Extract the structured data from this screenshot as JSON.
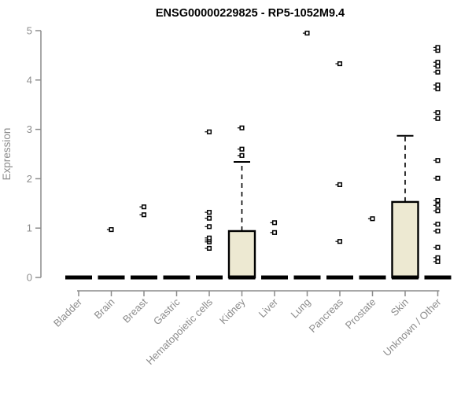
{
  "chart_data": {
    "type": "boxplot",
    "title": "ENSG00000229825 - RP5-1052M9.4",
    "ylabel": "Expression",
    "ylim": [
      0,
      5
    ],
    "yticks": [
      0,
      1,
      2,
      3,
      4,
      5
    ],
    "grid": false,
    "categories": [
      "Bladder",
      "Brain",
      "Breast",
      "Gastric",
      "Hematopoietic cells",
      "Kidney",
      "Liver",
      "Lung",
      "Pancreas",
      "Prostate",
      "Skin",
      "Unknown / Other"
    ],
    "series": [
      {
        "category": "Bladder",
        "median": 0,
        "q1": 0,
        "q3": 0,
        "whisker_low": 0,
        "whisker_high": 0,
        "outliers": []
      },
      {
        "category": "Brain",
        "median": 0,
        "q1": 0,
        "q3": 0,
        "whisker_low": 0,
        "whisker_high": 0,
        "outliers": [
          0.97
        ]
      },
      {
        "category": "Breast",
        "median": 0,
        "q1": 0,
        "q3": 0,
        "whisker_low": 0,
        "whisker_high": 0,
        "outliers": [
          1.27,
          1.43
        ]
      },
      {
        "category": "Gastric",
        "median": 0,
        "q1": 0,
        "q3": 0,
        "whisker_low": 0,
        "whisker_high": 0,
        "outliers": []
      },
      {
        "category": "Hematopoietic cells",
        "median": 0,
        "q1": 0,
        "q3": 0,
        "whisker_low": 0,
        "whisker_high": 0,
        "outliers": [
          0.59,
          0.72,
          0.76,
          0.8,
          1.03,
          1.2,
          1.32,
          2.95
        ]
      },
      {
        "category": "Kidney",
        "median": 0,
        "q1": 0,
        "q3": 0.94,
        "whisker_low": 0,
        "whisker_high": 2.34,
        "outliers": [
          2.47,
          2.6,
          3.03
        ]
      },
      {
        "category": "Liver",
        "median": 0,
        "q1": 0,
        "q3": 0,
        "whisker_low": 0,
        "whisker_high": 0,
        "outliers": [
          0.91,
          1.11
        ]
      },
      {
        "category": "Lung",
        "median": 0,
        "q1": 0,
        "q3": 0,
        "whisker_low": 0,
        "whisker_high": 0,
        "outliers": [
          4.95
        ]
      },
      {
        "category": "Pancreas",
        "median": 0,
        "q1": 0,
        "q3": 0,
        "whisker_low": 0,
        "whisker_high": 0,
        "outliers": [
          0.73,
          1.88,
          4.33
        ]
      },
      {
        "category": "Prostate",
        "median": 0,
        "q1": 0,
        "q3": 0,
        "whisker_low": 0,
        "whisker_high": 0,
        "outliers": [
          1.19
        ]
      },
      {
        "category": "Skin",
        "median": 0,
        "q1": 0,
        "q3": 1.53,
        "whisker_low": 0,
        "whisker_high": 2.87,
        "outliers": []
      },
      {
        "category": "Unknown / Other",
        "median": 0,
        "q1": 0,
        "q3": 0,
        "whisker_low": 0,
        "whisker_high": 0,
        "outliers": [
          0.32,
          0.4,
          0.61,
          0.94,
          1.08,
          1.35,
          1.46,
          1.56,
          2.01,
          2.37,
          3.22,
          3.34,
          3.82,
          3.9,
          4.16,
          4.28,
          4.36,
          4.6,
          4.66
        ]
      }
    ],
    "colors": {
      "box_fill": "#ede9d2",
      "box_stroke": "#000000",
      "median": "#000000",
      "outlier_stroke": "#000000",
      "outlier_fill": "#ffffff",
      "axis": "#8c8c8c",
      "tick_label": "#8c8c8c",
      "title": "#000000"
    },
    "legend": null
  }
}
